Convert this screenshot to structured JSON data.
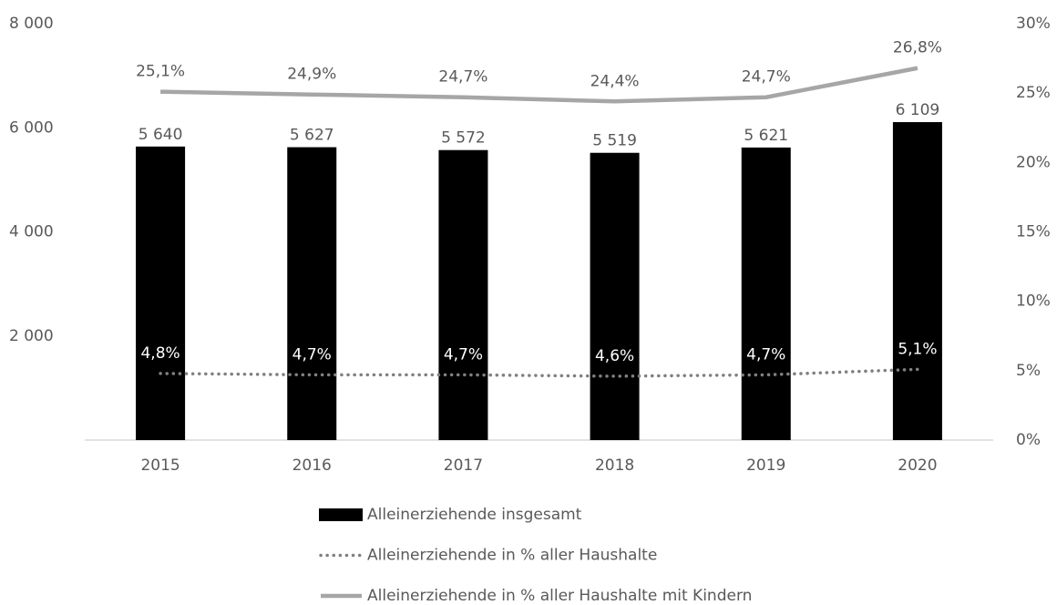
{
  "chart_data": {
    "type": "bar",
    "categories": [
      "2015",
      "2016",
      "2017",
      "2018",
      "2019",
      "2020"
    ],
    "series": [
      {
        "name": "Alleinerziehende insgesamt",
        "type": "bar",
        "color": "#000000",
        "axis": "y",
        "values": [
          5640,
          5627,
          5572,
          5519,
          5621,
          6109
        ],
        "value_labels": [
          "5 640",
          "5 627",
          "5 572",
          "5 519",
          "5 621",
          "6 109"
        ]
      },
      {
        "name": "Alleinerziehende in % aller Haushalte",
        "type": "line",
        "line_style": "dotted",
        "color": "#808080",
        "axis": "y2",
        "values": [
          4.8,
          4.7,
          4.7,
          4.6,
          4.7,
          5.1
        ],
        "value_labels": [
          "4,8%",
          "4,7%",
          "4,7%",
          "4,6%",
          "4,7%",
          "5,1%"
        ]
      },
      {
        "name": "Alleinerziehende in % aller Haushalte mit Kindern",
        "type": "line",
        "line_style": "solid",
        "color": "#a6a6a6",
        "axis": "y2",
        "values": [
          25.1,
          24.9,
          24.7,
          24.4,
          24.7,
          26.8
        ],
        "value_labels": [
          "25,1%",
          "24,9%",
          "24,7%",
          "24,4%",
          "24,7%",
          "26,8%"
        ]
      }
    ],
    "ylim": [
      0,
      8000
    ],
    "yticks": [
      {
        "value": 2000,
        "label": "2 000"
      },
      {
        "value": 4000,
        "label": "4 000"
      },
      {
        "value": 6000,
        "label": "6 000"
      },
      {
        "value": 8000,
        "label": "8 000"
      }
    ],
    "y2lim": [
      0,
      30
    ],
    "y2ticks": [
      {
        "value": 0,
        "label": "0%"
      },
      {
        "value": 5,
        "label": "5%"
      },
      {
        "value": 10,
        "label": "10%"
      },
      {
        "value": 15,
        "label": "15%"
      },
      {
        "value": 20,
        "label": "20%"
      },
      {
        "value": 25,
        "label": "25%"
      },
      {
        "value": 30,
        "label": "30%"
      }
    ],
    "legend": "bottom"
  }
}
